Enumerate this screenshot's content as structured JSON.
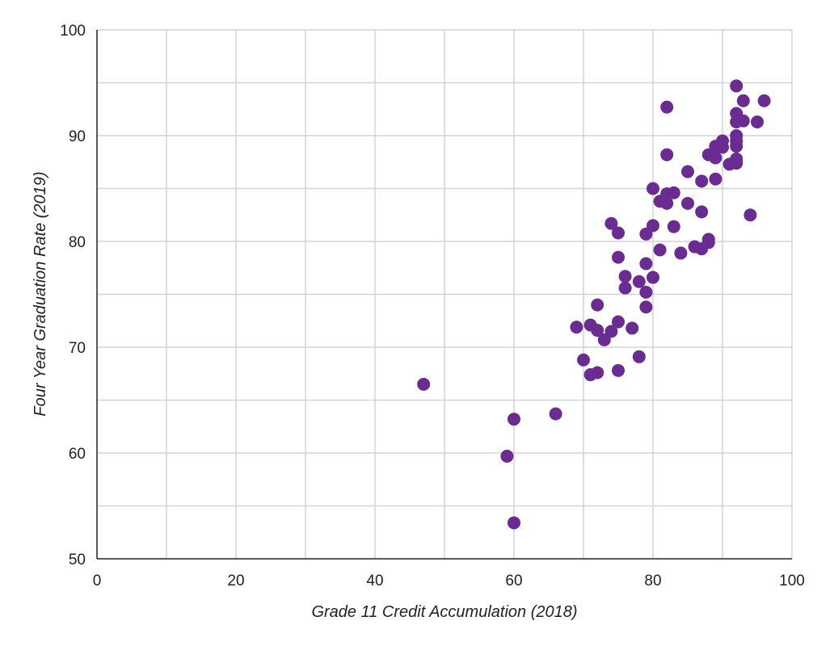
{
  "chart_data": {
    "type": "scatter",
    "title": "",
    "xlabel": "Grade 11 Credit Accumulation (2018)",
    "ylabel": "Four Year Graduation Rate (2019)",
    "xlim": [
      0,
      100
    ],
    "ylim": [
      50,
      100
    ],
    "x_ticks": [
      0,
      20,
      40,
      60,
      80,
      100
    ],
    "y_ticks": [
      50,
      60,
      70,
      80,
      90,
      100
    ],
    "grid": true,
    "marker_color": "#6a2c91",
    "series": [
      {
        "points": [
          [
            47,
            66.5
          ],
          [
            59,
            59.7
          ],
          [
            60,
            63.2
          ],
          [
            60,
            53.4
          ],
          [
            66,
            63.7
          ],
          [
            69,
            71.9
          ],
          [
            70,
            68.8
          ],
          [
            71,
            72.1
          ],
          [
            71,
            67.4
          ],
          [
            72,
            74.0
          ],
          [
            72,
            71.6
          ],
          [
            72,
            67.6
          ],
          [
            73,
            70.7
          ],
          [
            74,
            71.5
          ],
          [
            74,
            81.7
          ],
          [
            75,
            80.8
          ],
          [
            75,
            78.5
          ],
          [
            75,
            72.4
          ],
          [
            75,
            67.8
          ],
          [
            76,
            76.7
          ],
          [
            76,
            75.6
          ],
          [
            77,
            71.8
          ],
          [
            78,
            76.2
          ],
          [
            78,
            69.1
          ],
          [
            79,
            80.7
          ],
          [
            79,
            77.9
          ],
          [
            79,
            75.2
          ],
          [
            79,
            73.8
          ],
          [
            80,
            85.0
          ],
          [
            80,
            81.5
          ],
          [
            80,
            76.6
          ],
          [
            81,
            83.8
          ],
          [
            81,
            79.2
          ],
          [
            82,
            92.7
          ],
          [
            82,
            88.2
          ],
          [
            82,
            84.5
          ],
          [
            82,
            83.6
          ],
          [
            83,
            84.6
          ],
          [
            83,
            81.4
          ],
          [
            84,
            78.9
          ],
          [
            85,
            86.6
          ],
          [
            85,
            83.6
          ],
          [
            86,
            79.5
          ],
          [
            87,
            85.7
          ],
          [
            87,
            82.8
          ],
          [
            87,
            79.3
          ],
          [
            88,
            88.2
          ],
          [
            88,
            80.2
          ],
          [
            88,
            79.9
          ],
          [
            89,
            89.0
          ],
          [
            89,
            87.9
          ],
          [
            89,
            85.9
          ],
          [
            90,
            89.5
          ],
          [
            90,
            88.9
          ],
          [
            91,
            87.3
          ],
          [
            92,
            94.7
          ],
          [
            92,
            92.1
          ],
          [
            92,
            91.3
          ],
          [
            92,
            90.0
          ],
          [
            92,
            89.5
          ],
          [
            92,
            89.0
          ],
          [
            92,
            87.8
          ],
          [
            92,
            87.4
          ],
          [
            93,
            93.3
          ],
          [
            93,
            91.4
          ],
          [
            94,
            82.5
          ],
          [
            95,
            91.3
          ],
          [
            96,
            93.3
          ]
        ]
      }
    ]
  }
}
